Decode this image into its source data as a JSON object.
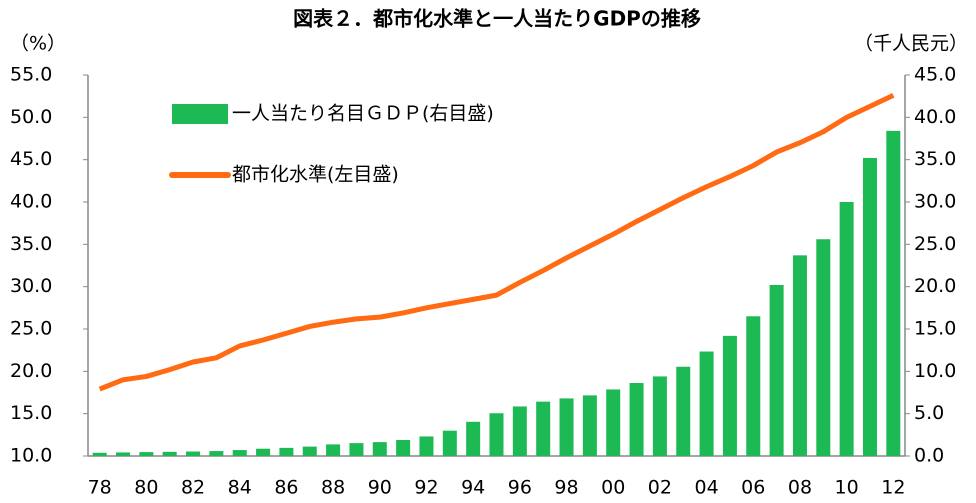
{
  "chart_data": {
    "type": "bar_line",
    "title": "図表２．都市化水準と一人当たりGDPの推移",
    "y_label": "（%）",
    "y2_label": "（千人民元）",
    "categories": [
      "78",
      null,
      "80",
      null,
      "82",
      null,
      "84",
      null,
      "86",
      null,
      "88",
      null,
      "90",
      null,
      "92",
      null,
      "94",
      null,
      "96",
      null,
      "98",
      null,
      "00",
      null,
      "02",
      null,
      "04",
      null,
      "06",
      null,
      "08",
      null,
      "10",
      null,
      "12"
    ],
    "series": [
      {
        "name": "一人当たり名目ＧＤＰ(右目盛)",
        "type": "bar",
        "axis": "y2",
        "color": "#1db954",
        "values": [
          0.38,
          0.42,
          0.46,
          0.49,
          0.53,
          0.58,
          0.7,
          0.86,
          0.96,
          1.11,
          1.37,
          1.52,
          1.64,
          1.89,
          2.31,
          2.99,
          4.04,
          5.05,
          5.85,
          6.42,
          6.8,
          7.16,
          7.86,
          8.62,
          9.4,
          10.54,
          12.34,
          14.19,
          16.5,
          20.2,
          23.7,
          25.6,
          30.0,
          35.2,
          38.4
        ]
      },
      {
        "name": "都市化水準(左目盛)",
        "type": "line",
        "axis": "y",
        "color": "#ff6a13",
        "values": [
          17.9,
          19.0,
          19.4,
          20.2,
          21.1,
          21.6,
          23.0,
          23.7,
          24.5,
          25.3,
          25.8,
          26.2,
          26.4,
          26.9,
          27.5,
          28.0,
          28.5,
          29.0,
          30.5,
          31.9,
          33.4,
          34.8,
          36.2,
          37.7,
          39.1,
          40.5,
          41.8,
          43.0,
          44.3,
          45.9,
          47.0,
          48.3,
          50.0,
          51.3,
          52.6
        ]
      }
    ],
    "ylim": [
      10,
      55
    ],
    "yticks": [
      {
        "value": 10,
        "label": "10.0"
      },
      {
        "value": 15,
        "label": "15.0"
      },
      {
        "value": 20,
        "label": "20.0"
      },
      {
        "value": 25,
        "label": "25.0"
      },
      {
        "value": 30,
        "label": "30.0"
      },
      {
        "value": 35,
        "label": "35.0"
      },
      {
        "value": 40,
        "label": "40.0"
      },
      {
        "value": 45,
        "label": "45.0"
      },
      {
        "value": 50,
        "label": "50.0"
      },
      {
        "value": 55,
        "label": "55.0"
      }
    ],
    "y2lim": [
      0,
      45
    ],
    "y2ticks": [
      {
        "value": 0,
        "label": "0.0"
      },
      {
        "value": 5,
        "label": "5.0"
      },
      {
        "value": 10,
        "label": "10.0"
      },
      {
        "value": 15,
        "label": "15.0"
      },
      {
        "value": 20,
        "label": "20.0"
      },
      {
        "value": 25,
        "label": "25.0"
      },
      {
        "value": 30,
        "label": "30.0"
      },
      {
        "value": 35,
        "label": "35.0"
      },
      {
        "value": 40,
        "label": "40.0"
      },
      {
        "value": 45,
        "label": "45.0"
      }
    ]
  }
}
